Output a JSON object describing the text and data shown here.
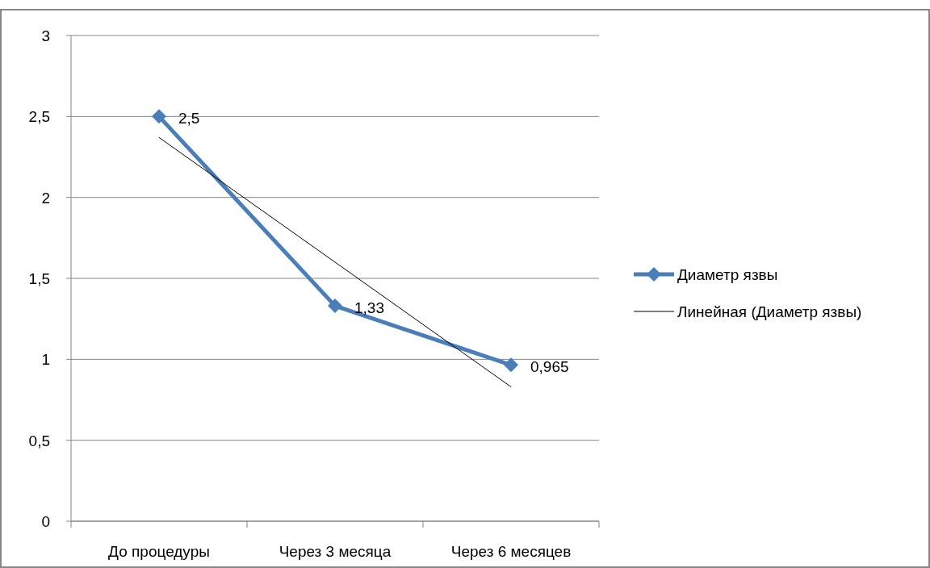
{
  "chart_data": {
    "type": "line",
    "categories": [
      "До процедуры",
      "Через 3 месяца",
      "Через 6 месяцев"
    ],
    "series": [
      {
        "name": "Диаметр язвы",
        "color": "#4a7ebb",
        "values": [
          2.5,
          1.33,
          0.965
        ],
        "value_labels": [
          "2,5",
          "1,33",
          "0,965"
        ],
        "marker": "diamond"
      },
      {
        "name": "Линейная (Диаметр язвы)",
        "color": "#000000",
        "values": [
          2.37,
          1.6,
          0.83
        ],
        "marker": "none"
      }
    ],
    "ylim": [
      0,
      3
    ],
    "yticks": [
      {
        "value": 0,
        "label": "0"
      },
      {
        "value": 0.5,
        "label": "0,5"
      },
      {
        "value": 1,
        "label": "1"
      },
      {
        "value": 1.5,
        "label": "1,5"
      },
      {
        "value": 2,
        "label": "2"
      },
      {
        "value": 2.5,
        "label": "2,5"
      },
      {
        "value": 3,
        "label": "3"
      }
    ],
    "grid": "y",
    "legend": "right"
  }
}
